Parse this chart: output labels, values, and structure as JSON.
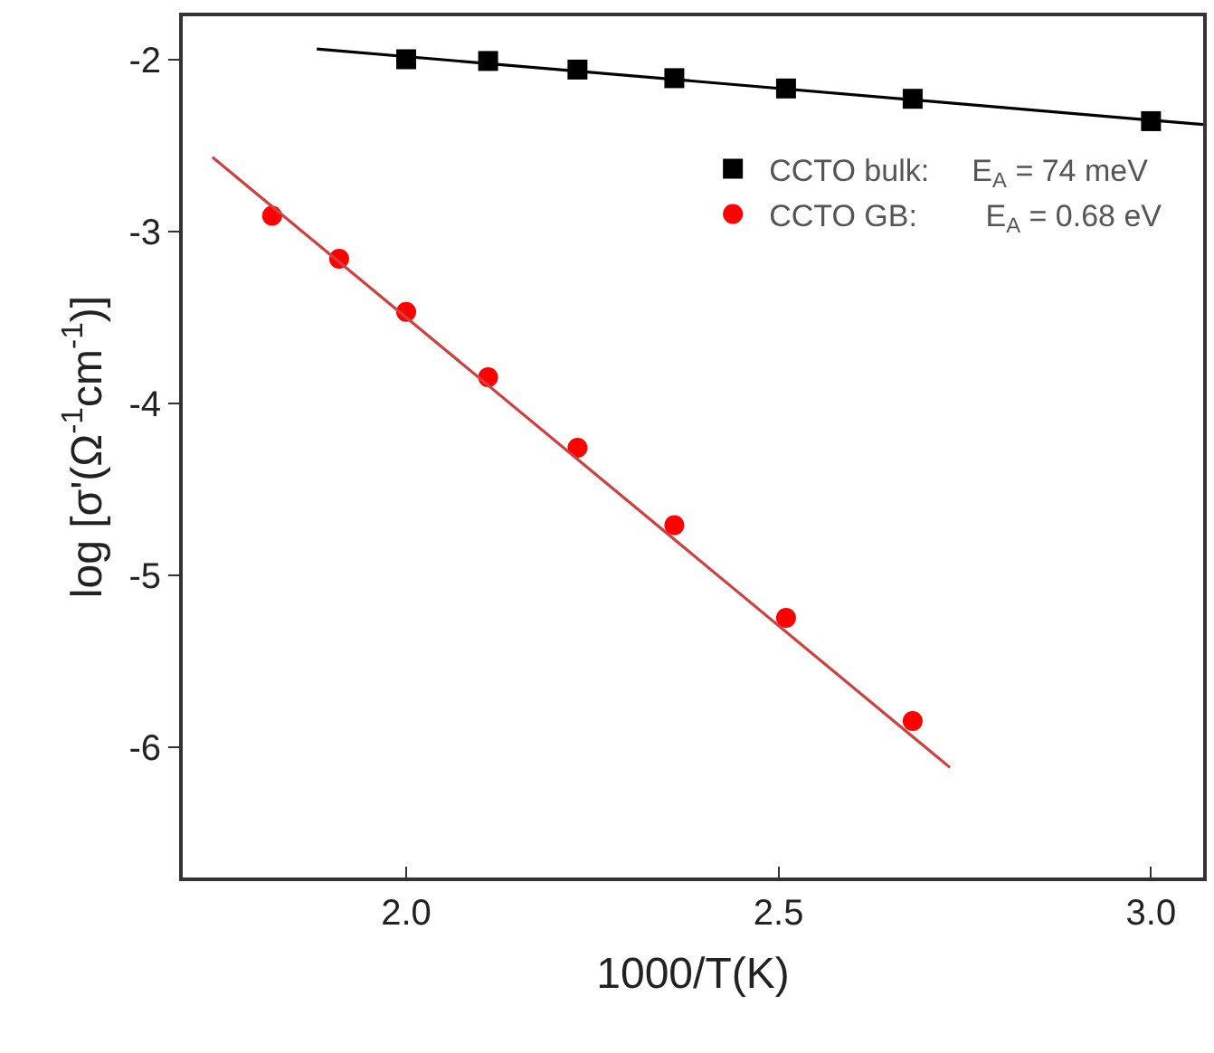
{
  "chart_data": {
    "type": "scatter",
    "xlabel": "1000/T(K)",
    "ylabel": "log [σ'(Ω$^{-1}$cm$^{-1}$)]",
    "xlim": [
      1.7,
      3.07
    ],
    "xticks": [
      {
        "value": 2.0,
        "label": "2.0"
      },
      {
        "value": 2.5,
        "label": "2.5"
      },
      {
        "value": 3.0,
        "label": "3.0"
      }
    ],
    "ylim": [
      -6.76,
      -1.75
    ],
    "yticks": [
      -6,
      -5,
      -4,
      -3,
      -2
    ],
    "legend": "top right",
    "series": [
      {
        "name": "CCTO bulk:     E$_{A}$ = 74 meV",
        "color": "#000000",
        "marker": "square",
        "x": [
          2.0,
          2.11,
          2.23,
          2.36,
          2.51,
          2.68,
          3.0
        ],
        "values": [
          -2.0,
          -2.01,
          -2.06,
          -2.11,
          -2.17,
          -2.23,
          -2.36
        ]
      },
      {
        "name": "CCTO GB:        E$_{A}$ = 0.68 eV",
        "color": "#ff0000",
        "marker": "circle",
        "x": [
          1.82,
          1.91,
          2.0,
          2.11,
          2.23,
          2.36,
          2.51,
          2.68
        ],
        "values": [
          -2.91,
          -3.16,
          -3.47,
          -3.85,
          -4.26,
          -4.71,
          -5.25,
          -5.85
        ]
      },
      {
        "type": "line",
        "color": "#000000",
        "x": [
          1.88,
          3.07
        ],
        "values": [
          -1.94,
          -2.38
        ]
      },
      {
        "type": "line",
        "color": "#d04040",
        "x": [
          1.74,
          2.73
        ],
        "values": [
          -2.57,
          -6.12
        ]
      }
    ]
  }
}
